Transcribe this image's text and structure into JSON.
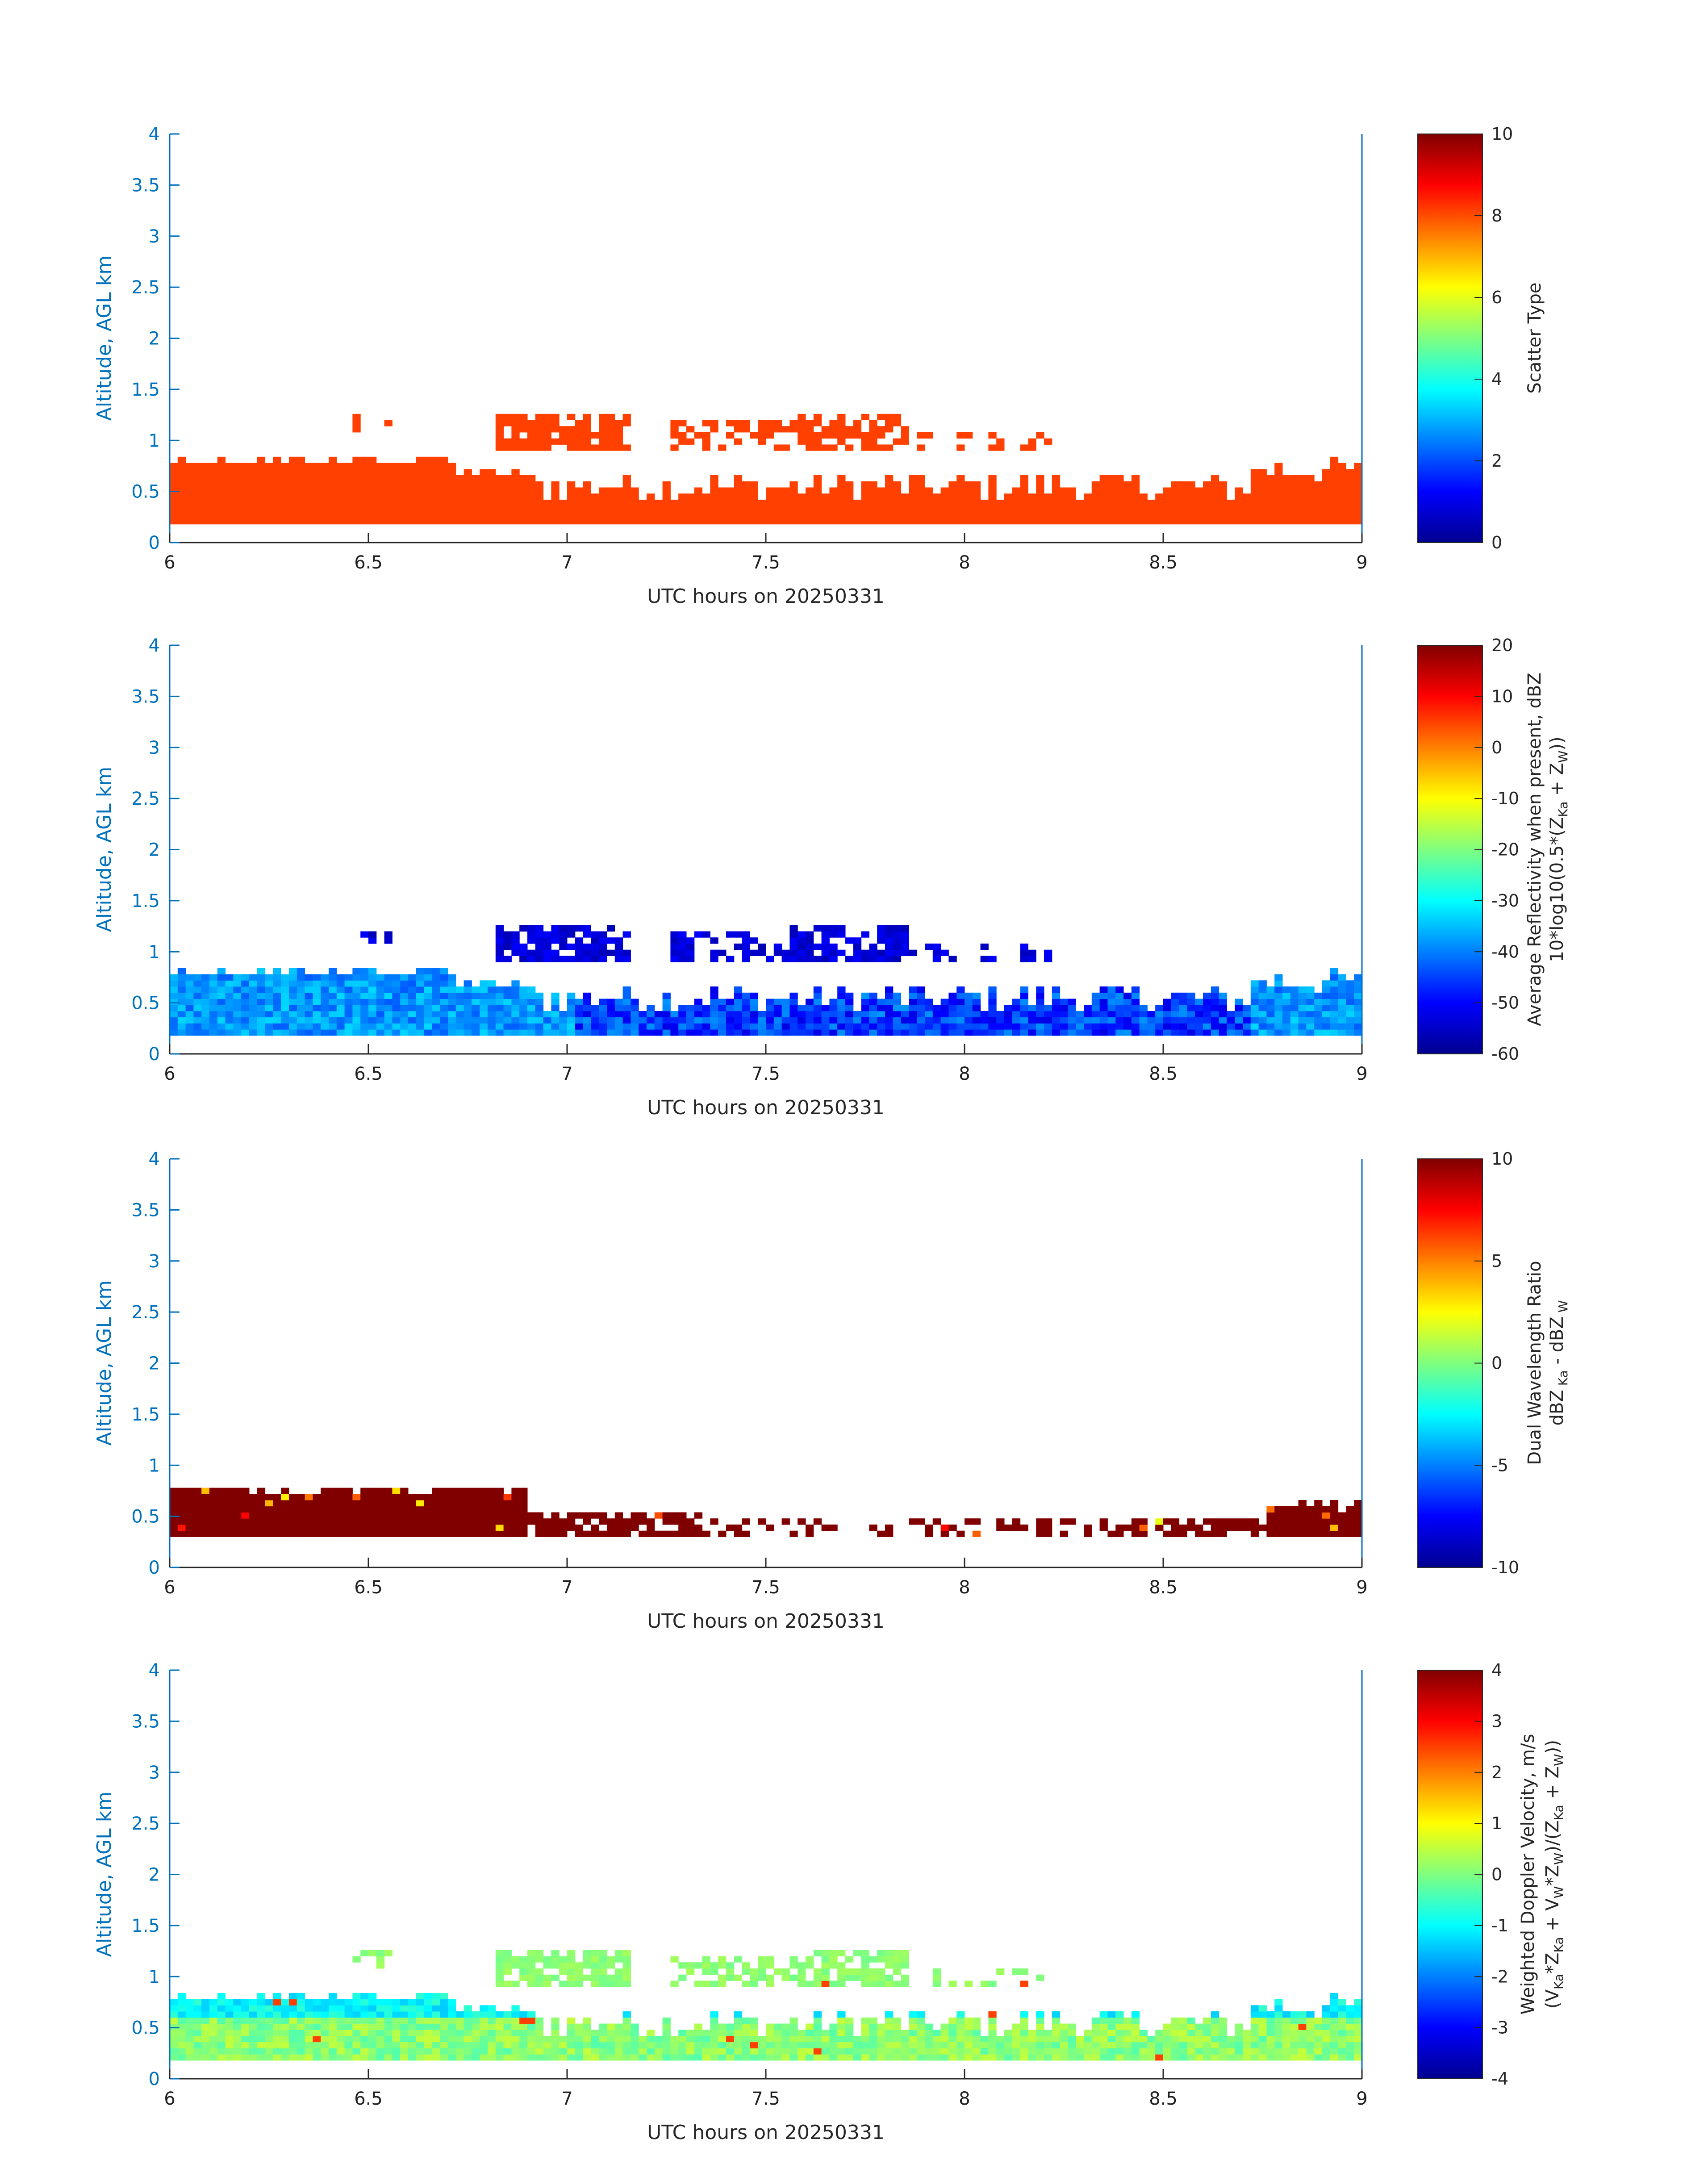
{
  "chart_data": [
    {
      "type": "heatmap",
      "xlabel": "UTC hours on 20250331",
      "ylabel": "Altitude, AGL km",
      "xlim": [
        6,
        9
      ],
      "ylim": [
        0,
        4
      ],
      "x_ticks": [
        "6",
        "6.5",
        "7",
        "7.5",
        "8",
        "8.5",
        "9"
      ],
      "y_ticks": [
        "0",
        "0.5",
        "1",
        "1.5",
        "2",
        "2.5",
        "3",
        "3.5",
        "4"
      ],
      "colorbar": {
        "label_lines": [
          "Scatter Type"
        ],
        "clim": [
          0,
          10
        ],
        "ticks": [
          "0",
          "2",
          "4",
          "6",
          "8",
          "10"
        ]
      },
      "field": "scatter_type",
      "approx_value": 9.0,
      "layers": [
        {
          "x_range": [
            6.0,
            9.0
          ],
          "alt_km": [
            0.18,
            0.6
          ],
          "coverage": 1.0
        },
        {
          "x_range": [
            6.0,
            6.7
          ],
          "alt_km": [
            0.6,
            0.85
          ],
          "coverage": 0.85
        },
        {
          "x_range": [
            6.8,
            7.05
          ],
          "alt_km": [
            0.85,
            1.2
          ],
          "coverage": 0.75
        },
        {
          "x_range": [
            7.55,
            7.85
          ],
          "alt_km": [
            0.85,
            1.25
          ],
          "coverage": 0.7
        },
        {
          "x_range": [
            8.75,
            9.0
          ],
          "alt_km": [
            0.6,
            0.8
          ],
          "coverage": 0.6
        }
      ]
    },
    {
      "type": "heatmap",
      "xlabel": "UTC hours on 20250331",
      "ylabel": "Altitude, AGL km",
      "xlim": [
        6,
        9
      ],
      "ylim": [
        0,
        4
      ],
      "x_ticks": [
        "6",
        "6.5",
        "7",
        "7.5",
        "8",
        "8.5",
        "9"
      ],
      "y_ticks": [
        "0",
        "0.5",
        "1",
        "1.5",
        "2",
        "2.5",
        "3",
        "3.5",
        "4"
      ],
      "colorbar": {
        "label_lines": [
          "Average Reflectivity when present, dBZ",
          "10*log10(0.5*(Z_Ka + Z_W))"
        ],
        "clim": [
          -60,
          20
        ],
        "ticks": [
          "-60",
          "-50",
          "-40",
          "-30",
          "-20",
          "-10",
          "0",
          "10",
          "20"
        ]
      },
      "field": "reflectivity_dBZ",
      "approx_value_low_layer": -35,
      "approx_value_upper_layer": -50
    },
    {
      "type": "heatmap",
      "xlabel": "UTC hours on 20250331",
      "ylabel": "Altitude, AGL km",
      "xlim": [
        6,
        9
      ],
      "ylim": [
        0,
        4
      ],
      "x_ticks": [
        "6",
        "6.5",
        "7",
        "7.5",
        "8",
        "8.5",
        "9"
      ],
      "y_ticks": [
        "0",
        "0.5",
        "1",
        "1.5",
        "2",
        "2.5",
        "3",
        "3.5",
        "4"
      ],
      "colorbar": {
        "label_lines": [
          "Dual Wavelength Ratio",
          "dBZ_Ka - dBZ_W"
        ],
        "clim": [
          -10,
          10
        ],
        "ticks": [
          "-10",
          "-5",
          "0",
          "5",
          "10"
        ]
      },
      "field": "dual_wavelength_ratio",
      "approx_value": 10
    },
    {
      "type": "heatmap",
      "xlabel": "UTC hours on 20250331",
      "ylabel": "Altitude, AGL km",
      "xlim": [
        6,
        9
      ],
      "ylim": [
        0,
        4
      ],
      "x_ticks": [
        "6",
        "6.5",
        "7",
        "7.5",
        "8",
        "8.5",
        "9"
      ],
      "y_ticks": [
        "0",
        "0.5",
        "1",
        "1.5",
        "2",
        "2.5",
        "3",
        "3.5",
        "4"
      ],
      "colorbar": {
        "label_lines": [
          "Weighted Doppler Velocity, m/s",
          "(V_Ka*Z_Ka + V_W*Z_W)/(Z_Ka + Z_W)"
        ],
        "clim": [
          -4,
          4
        ],
        "ticks": [
          "-4",
          "-3",
          "-2",
          "-1",
          "0",
          "1",
          "2",
          "3",
          "4"
        ]
      },
      "field": "doppler_velocity_ms",
      "approx_value_low_layer": -0.5,
      "approx_value_upper_layer": 0.2
    }
  ],
  "colors": {
    "axis_y": "#0072bd",
    "text": "#262626",
    "scatter_fill": "#ff4000"
  }
}
